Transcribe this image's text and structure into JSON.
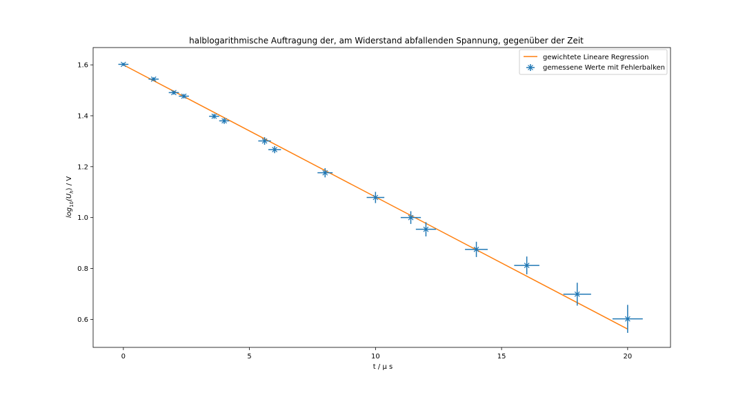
{
  "chart_data": {
    "type": "scatter",
    "title": "halblogarithmische Auftragung der, am Widerstand abfallenden Spannung, gegenüber der Zeit",
    "xlabel": "t / μ s",
    "ylabel_main": "log",
    "ylabel_sub": "10",
    "ylabel_arg_open": "(U",
    "ylabel_arg_sub": "h",
    "ylabel_arg_close": ") / V",
    "xlim": [
      -1.2,
      21.7
    ],
    "ylim": [
      0.49,
      1.668
    ],
    "xticks": [
      0,
      5,
      10,
      15,
      20
    ],
    "yticks": [
      0.6,
      0.8,
      1.0,
      1.2,
      1.4,
      1.6
    ],
    "xtick_labels": [
      "0",
      "5",
      "10",
      "15",
      "20"
    ],
    "ytick_labels": [
      "0.6",
      "0.8",
      "1.0",
      "1.2",
      "1.4",
      "1.6"
    ],
    "legend_position": "top-right",
    "grid": false,
    "series": [
      {
        "name": "gewichtete Lineare Regression",
        "kind": "line",
        "color": "#ff7f0e",
        "x": [
          0,
          20
        ],
        "y": [
          1.6,
          0.562
        ]
      },
      {
        "name": "gemessene Werte mit Fehlerbalken",
        "kind": "errorbar",
        "color": "#1f77b4",
        "marker": "x",
        "points": [
          {
            "x": 0,
            "y": 1.602,
            "xerr": 0.2,
            "yerr": 0.006
          },
          {
            "x": 1.2,
            "y": 1.544,
            "xerr": 0.2,
            "yerr": 0.007
          },
          {
            "x": 2.0,
            "y": 1.491,
            "xerr": 0.2,
            "yerr": 0.008
          },
          {
            "x": 2.4,
            "y": 1.477,
            "xerr": 0.2,
            "yerr": 0.009
          },
          {
            "x": 3.6,
            "y": 1.398,
            "xerr": 0.2,
            "yerr": 0.01
          },
          {
            "x": 4.0,
            "y": 1.38,
            "xerr": 0.2,
            "yerr": 0.012
          },
          {
            "x": 5.6,
            "y": 1.301,
            "xerr": 0.25,
            "yerr": 0.015
          },
          {
            "x": 6.0,
            "y": 1.267,
            "xerr": 0.25,
            "yerr": 0.014
          },
          {
            "x": 8.0,
            "y": 1.176,
            "xerr": 0.3,
            "yerr": 0.018
          },
          {
            "x": 10.0,
            "y": 1.079,
            "xerr": 0.35,
            "yerr": 0.022
          },
          {
            "x": 11.4,
            "y": 1.0,
            "xerr": 0.4,
            "yerr": 0.025
          },
          {
            "x": 12.0,
            "y": 0.954,
            "xerr": 0.4,
            "yerr": 0.028
          },
          {
            "x": 14.0,
            "y": 0.875,
            "xerr": 0.45,
            "yerr": 0.03
          },
          {
            "x": 16.0,
            "y": 0.812,
            "xerr": 0.5,
            "yerr": 0.035
          },
          {
            "x": 18.0,
            "y": 0.699,
            "xerr": 0.55,
            "yerr": 0.045
          },
          {
            "x": 20.0,
            "y": 0.602,
            "xerr": 0.6,
            "yerr": 0.055
          }
        ]
      }
    ]
  }
}
